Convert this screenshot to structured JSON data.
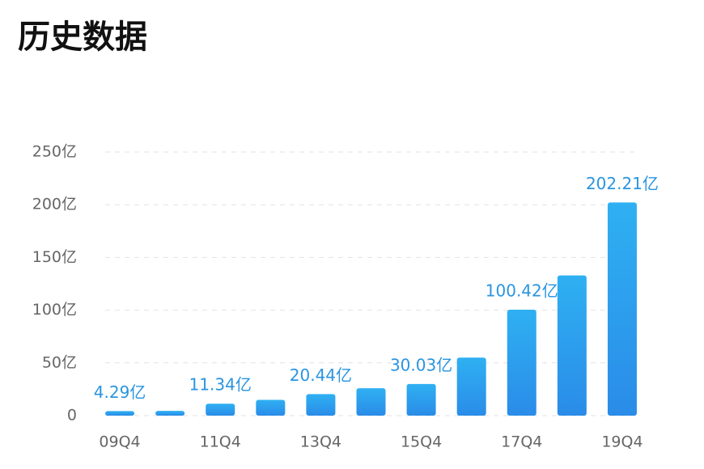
{
  "chart_data": {
    "type": "bar",
    "title": "历史数据",
    "categories": [
      "09Q4",
      null,
      "11Q4",
      null,
      "13Q4",
      null,
      "15Q4",
      null,
      "17Q4",
      null,
      "19Q4"
    ],
    "values": [
      4.29,
      4.5,
      11.34,
      15,
      20.44,
      26,
      30.03,
      55,
      100.42,
      133,
      202.21
    ],
    "value_labels": [
      "4.29亿",
      null,
      "11.34亿",
      null,
      "20.44亿",
      null,
      "30.03亿",
      null,
      "100.42亿",
      null,
      "202.21亿"
    ],
    "color": "#2a9bec",
    "ylim": [
      0,
      250
    ],
    "yticks": [
      0,
      {
        "value": 50,
        "label": "50亿"
      },
      {
        "value": 100,
        "label": "100亿"
      },
      {
        "value": 150,
        "label": "150亿"
      },
      {
        "value": 200,
        "label": "200亿"
      },
      {
        "value": 250,
        "label": "250亿"
      }
    ],
    "grid": true
  }
}
